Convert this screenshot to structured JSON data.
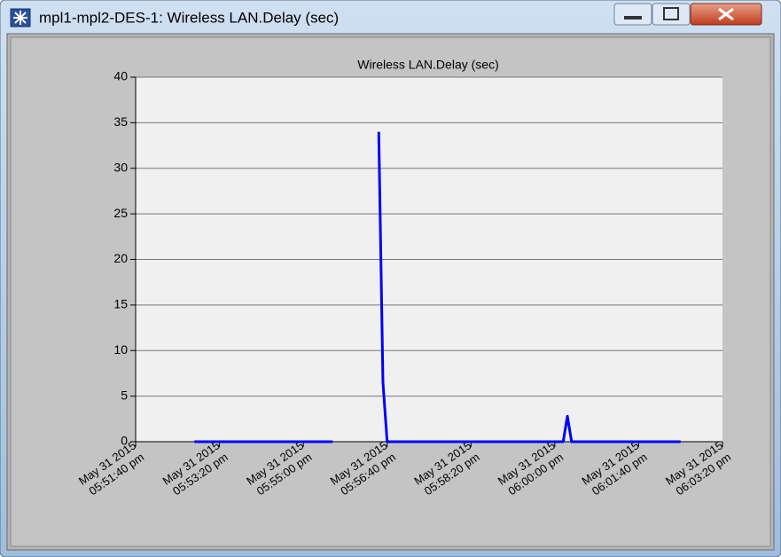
{
  "window": {
    "title": "mpl1-mpl2-DES-1: Wireless LAN.Delay (sec)"
  },
  "chart_data": {
    "type": "line",
    "title": "Wireless LAN.Delay (sec)",
    "x": [
      "2015-05-31 17:52:50",
      "2015-05-31 17:55:35",
      "2015-05-31 17:56:00",
      "2015-05-31 17:56:30",
      "2015-05-31 17:56:35",
      "2015-05-31 17:56:40",
      "2015-05-31 18:00:10",
      "2015-05-31 18:00:15",
      "2015-05-31 18:00:20",
      "2015-05-31 18:02:30"
    ],
    "series": [
      {
        "name": "Wireless LAN.Delay (sec)",
        "color": "#0000ff",
        "values": [
          0,
          0,
          null,
          34,
          6.5,
          0,
          0,
          2.8,
          0,
          0
        ]
      }
    ],
    "xlim": [
      "2015-05-31 17:51:40",
      "2015-05-31 18:03:20"
    ],
    "xticks": [
      {
        "value": "2015-05-31 17:51:40",
        "label": [
          "May 31 2015",
          "05:51:40 pm"
        ]
      },
      {
        "value": "2015-05-31 17:53:20",
        "label": [
          "May 31 2015",
          "05:53:20 pm"
        ]
      },
      {
        "value": "2015-05-31 17:55:00",
        "label": [
          "May 31 2015",
          "05:55:00 pm"
        ]
      },
      {
        "value": "2015-05-31 17:56:40",
        "label": [
          "May 31 2015",
          "05:56:40 pm"
        ]
      },
      {
        "value": "2015-05-31 17:58:20",
        "label": [
          "May 31 2015",
          "05:58:20 pm"
        ]
      },
      {
        "value": "2015-05-31 18:00:00",
        "label": [
          "May 31 2015",
          "06:00:00 pm"
        ]
      },
      {
        "value": "2015-05-31 18:01:40",
        "label": [
          "May 31 2015",
          "06:01:40 pm"
        ]
      },
      {
        "value": "2015-05-31 18:03:20",
        "label": [
          "May 31 2015",
          "06:03:20 pm"
        ]
      }
    ],
    "ylim": [
      0,
      40
    ],
    "yticks": [
      0,
      5,
      10,
      15,
      20,
      25,
      30,
      35,
      40
    ],
    "grid": true
  }
}
